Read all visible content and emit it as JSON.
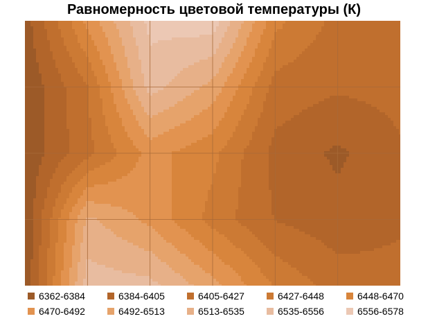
{
  "chart_data": {
    "type": "heatmap",
    "subtype": "contour",
    "title": "Равномерность цветовой температуры (К)",
    "xlabel": "",
    "ylabel": "",
    "grid": true,
    "grid_columns": 6,
    "grid_rows": 4,
    "legend_position": "bottom",
    "legend_columns": 5,
    "levels": [
      {
        "label": "6362-6384",
        "min": 6362,
        "max": 6384,
        "color": "#9c5a28"
      },
      {
        "label": "6384-6405",
        "min": 6384,
        "max": 6405,
        "color": "#b2652a"
      },
      {
        "label": "6405-6427",
        "min": 6405,
        "max": 6427,
        "color": "#c06f2e"
      },
      {
        "label": "6427-6448",
        "min": 6427,
        "max": 6448,
        "color": "#cc7a34"
      },
      {
        "label": "6448-6470",
        "min": 6448,
        "max": 6470,
        "color": "#d8853c"
      },
      {
        "label": "6470-6492",
        "min": 6470,
        "max": 6492,
        "color": "#e29350"
      },
      {
        "label": "6492-6513",
        "min": 6492,
        "max": 6513,
        "color": "#e6a36b"
      },
      {
        "label": "6513-6535",
        "min": 6513,
        "max": 6535,
        "color": "#e7b088"
      },
      {
        "label": "6535-6556",
        "min": 6535,
        "max": 6556,
        "color": "#e8bca0"
      },
      {
        "label": "6556-6578",
        "min": 6556,
        "max": 6578,
        "color": "#ecc8b4"
      }
    ],
    "values": [
      [
        6374,
        6476,
        6563,
        6570,
        6455,
        6420,
        6418
      ],
      [
        6366,
        6426,
        6544,
        6506,
        6418,
        6408,
        6412
      ],
      [
        6368,
        6420,
        6478,
        6454,
        6398,
        6380,
        6402
      ],
      [
        6364,
        6518,
        6486,
        6440,
        6404,
        6392,
        6402
      ],
      [
        6366,
        6547,
        6542,
        6500,
        6446,
        6416,
        6412
      ]
    ]
  }
}
